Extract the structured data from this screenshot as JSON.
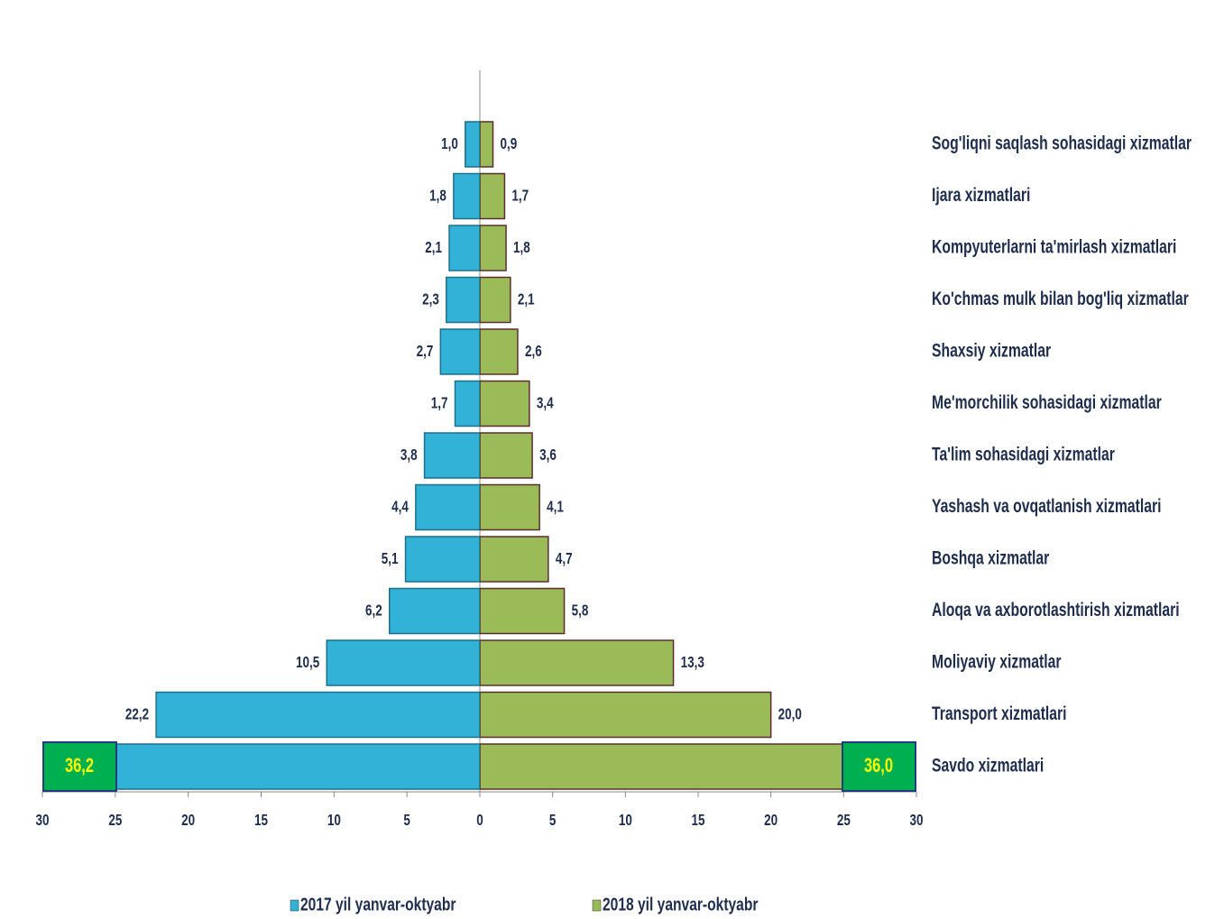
{
  "chart_data": [
    {
      "type": "bar",
      "orientation": "horizontal",
      "series": [
        {
          "name": "2017 yil yanvar-oktyabr",
          "color": "#31b2d6",
          "values": [
            1.0,
            1.8,
            2.1,
            2.3,
            2.7,
            1.7,
            3.8,
            4.4,
            5.1,
            6.2,
            10.5,
            22.2,
            36.2
          ],
          "value_labels": [
            "1,0",
            "1,8",
            "2,1",
            "2,3",
            "2,7",
            "1,7",
            "3,8",
            "4,4",
            "5,1",
            "6,2",
            "10,5",
            "22,2",
            "36,2"
          ]
        }
      ],
      "xlim": [
        30,
        0
      ],
      "xticks": [
        30,
        25,
        20,
        15,
        10,
        5,
        0
      ]
    },
    {
      "type": "bar",
      "orientation": "horizontal",
      "categories": [
        "Sog'liqni saqlash sohasidagi xizmatlar",
        "Ijara xizmatlari",
        "Kompyuterlarni ta'mirlash xizmatlari",
        "Ko'chmas mulk bilan bog'liq xizmatlar",
        "Shaxsiy xizmatlar",
        "Me'morchilik sohasidagi xizmatlar",
        "Ta'lim sohasidagi xizmatlar",
        "Yashash va ovqatlanish xizmatlari",
        "Boshqa xizmatlar",
        "Aloqa va axborotlashtirish xizmatlari",
        "Moliyaviy xizmatlar",
        "Transport xizmatlari",
        "Savdo xizmatlari"
      ],
      "series": [
        {
          "name": "2018 yil yanvar-oktyabr",
          "color": "#9bbb59",
          "values": [
            0.9,
            1.7,
            1.8,
            2.1,
            2.6,
            3.4,
            3.6,
            4.1,
            4.7,
            5.8,
            13.3,
            20.0,
            36.0
          ],
          "value_labels": [
            "0,9",
            "1,7",
            "1,8",
            "2,1",
            "2,6",
            "3,4",
            "3,6",
            "4,1",
            "4,7",
            "5,8",
            "13,3",
            "20,0",
            "36,0"
          ]
        }
      ],
      "xlim": [
        0,
        30
      ],
      "xticks": [
        5,
        10,
        15,
        20,
        25,
        30
      ]
    }
  ]
}
